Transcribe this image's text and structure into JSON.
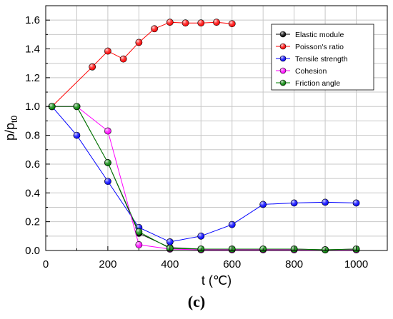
{
  "panel_label": "(c)",
  "chart_data": {
    "type": "line",
    "title": "",
    "xlabel": "t (℃)",
    "ylabel_main": "p/p",
    "ylabel_sub": "t0",
    "xlim": [
      0,
      1100
    ],
    "ylim": [
      0,
      1.7
    ],
    "x_ticks": [
      0,
      200,
      400,
      600,
      800,
      1000
    ],
    "x_tick_labels": [
      "0",
      "200",
      "400",
      "600",
      "800",
      "1000"
    ],
    "y_ticks": [
      0,
      0.2,
      0.4,
      0.6,
      0.8,
      1.0,
      1.2,
      1.4,
      1.6
    ],
    "y_tick_labels": [
      "0.0",
      "0.2",
      "0.4",
      "0.6",
      "0.8",
      "1.0",
      "1.2",
      "1.4",
      "1.6"
    ],
    "grid": true,
    "legend_position": "top-right",
    "series": [
      {
        "name": "Elastic module",
        "color": "#000000",
        "x": [
          20,
          100,
          200,
          300,
          400,
          500,
          600,
          700,
          800,
          900,
          1000
        ],
        "y": [
          1.0,
          1.0,
          0.61,
          0.12,
          0.02,
          0.01,
          0.01,
          0.01,
          0.01,
          0.005,
          0.01
        ]
      },
      {
        "name": "Poisson's ratio",
        "color": "#ff0000",
        "x": [
          20,
          150,
          200,
          250,
          300,
          350,
          400,
          450,
          500,
          550,
          600
        ],
        "y": [
          1.0,
          1.275,
          1.385,
          1.33,
          1.445,
          1.54,
          1.585,
          1.58,
          1.58,
          1.585,
          1.575
        ]
      },
      {
        "name": "Tensile strength",
        "color": "#0000ff",
        "x": [
          20,
          100,
          200,
          300,
          400,
          500,
          600,
          700,
          800,
          900,
          1000
        ],
        "y": [
          1.0,
          0.8,
          0.48,
          0.16,
          0.06,
          0.1,
          0.18,
          0.32,
          0.33,
          0.335,
          0.33
        ]
      },
      {
        "name": "Cohesion",
        "color": "#ff00ff",
        "x": [
          20,
          100,
          200,
          300,
          400,
          500,
          600,
          700,
          800,
          900,
          1000
        ],
        "y": [
          1.0,
          1.0,
          0.83,
          0.04,
          0.01,
          0.005,
          0.005,
          0.005,
          0.005,
          0.005,
          0.005
        ]
      },
      {
        "name": "Friction angle",
        "color": "#008000",
        "x": [
          20,
          100,
          200,
          300,
          400,
          500,
          600,
          700,
          800,
          900,
          1000
        ],
        "y": [
          1.0,
          1.0,
          0.61,
          0.13,
          0.015,
          0.01,
          0.01,
          0.01,
          0.01,
          0.005,
          0.01
        ]
      }
    ]
  }
}
